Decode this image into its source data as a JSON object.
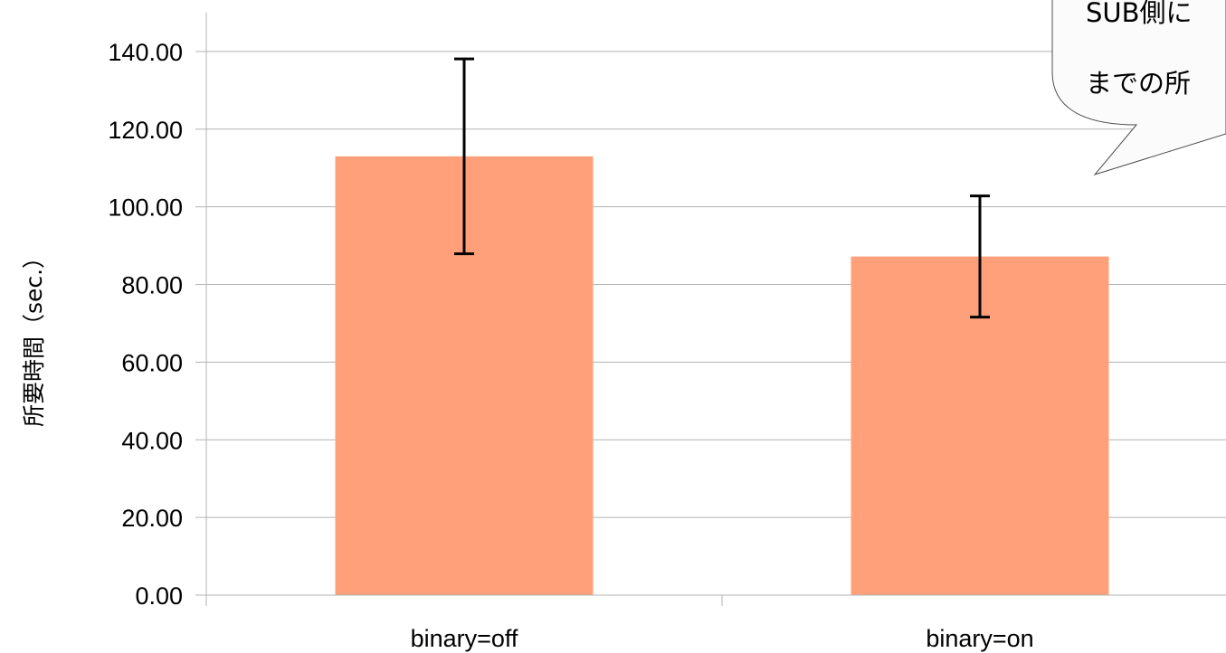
{
  "chart_data": {
    "type": "bar",
    "categories": [
      "binary=off",
      "binary=on"
    ],
    "series": [
      {
        "values": [
          113.0,
          87.2
        ],
        "error_upper": [
          138.1,
          102.8
        ],
        "error_lower": [
          87.9,
          71.6
        ],
        "color": "#ffa07a"
      }
    ],
    "yticks": [
      "0.00",
      "20.00",
      "40.00",
      "60.00",
      "80.00",
      "100.00",
      "120.00",
      "140.00"
    ],
    "ylim": [
      0,
      150
    ],
    "ylabel": "所要時間（sec.）",
    "xlabel": "",
    "title": "",
    "grid": true,
    "legend": "none",
    "callout": {
      "lines": [
        "SUB側に",
        "までの所"
      ]
    }
  }
}
